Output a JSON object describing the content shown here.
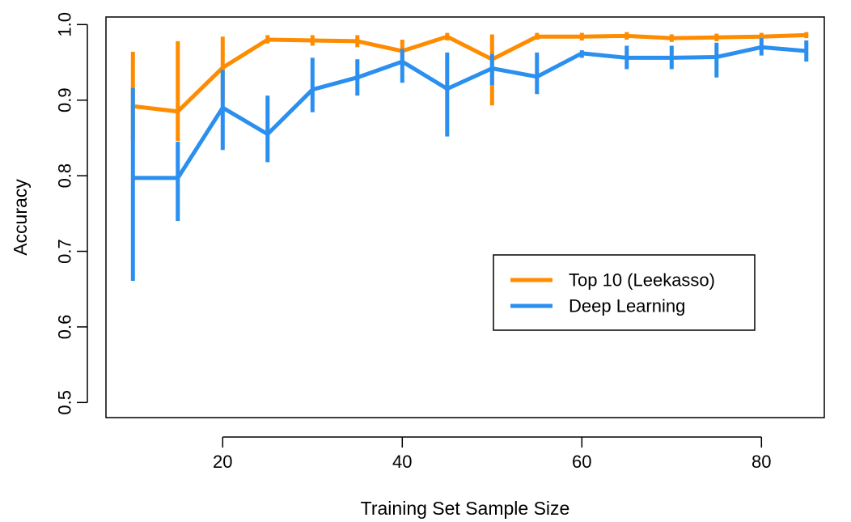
{
  "chart_data": {
    "type": "line",
    "title": "",
    "xlabel": "Training Set Sample Size",
    "ylabel": "Accuracy",
    "xlim": [
      7,
      87
    ],
    "ylim": [
      0.48,
      1.01
    ],
    "x_ticks": [
      {
        "value": 20,
        "label": "20"
      },
      {
        "value": 40,
        "label": "40"
      },
      {
        "value": 60,
        "label": "60"
      },
      {
        "value": 80,
        "label": "80"
      }
    ],
    "y_ticks": [
      {
        "value": 0.5,
        "label": "0.5"
      },
      {
        "value": 0.6,
        "label": "0.6"
      },
      {
        "value": 0.7,
        "label": "0.7"
      },
      {
        "value": 0.8,
        "label": "0.8"
      },
      {
        "value": 0.9,
        "label": "0.9"
      },
      {
        "value": 1.0,
        "label": "1.0"
      }
    ],
    "grid": false,
    "legend_position": "center-right",
    "x": [
      10,
      15,
      20,
      25,
      30,
      35,
      40,
      45,
      50,
      55,
      60,
      65,
      70,
      75,
      80,
      85
    ],
    "series": [
      {
        "name": "Top 10 (Leekasso)",
        "color": "#ff8c00",
        "values": [
          0.892,
          0.885,
          0.943,
          0.98,
          0.979,
          0.978,
          0.965,
          0.984,
          0.954,
          0.984,
          0.984,
          0.985,
          0.982,
          0.983,
          0.984,
          0.986
        ],
        "lower": [
          0.847,
          0.846,
          0.9,
          0.975,
          0.972,
          0.97,
          0.95,
          0.979,
          0.893,
          0.98,
          0.979,
          0.98,
          0.977,
          0.978,
          0.979,
          0.982
        ],
        "upper": [
          0.964,
          0.978,
          0.984,
          0.986,
          0.986,
          0.986,
          0.98,
          0.989,
          0.987,
          0.989,
          0.989,
          0.99,
          0.987,
          0.988,
          0.989,
          0.99
        ]
      },
      {
        "name": "Deep Learning",
        "color": "#2b8ff0",
        "values": [
          0.797,
          0.797,
          0.89,
          0.855,
          0.914,
          0.93,
          0.951,
          0.915,
          0.942,
          0.931,
          0.962,
          0.956,
          0.956,
          0.957,
          0.97,
          0.965
        ],
        "lower": [
          0.661,
          0.74,
          0.834,
          0.818,
          0.884,
          0.906,
          0.923,
          0.852,
          0.92,
          0.908,
          0.956,
          0.941,
          0.941,
          0.93,
          0.959,
          0.951
        ],
        "upper": [
          0.916,
          0.845,
          0.94,
          0.906,
          0.956,
          0.954,
          0.968,
          0.963,
          0.961,
          0.963,
          0.966,
          0.972,
          0.972,
          0.976,
          0.982,
          0.979
        ]
      }
    ]
  }
}
